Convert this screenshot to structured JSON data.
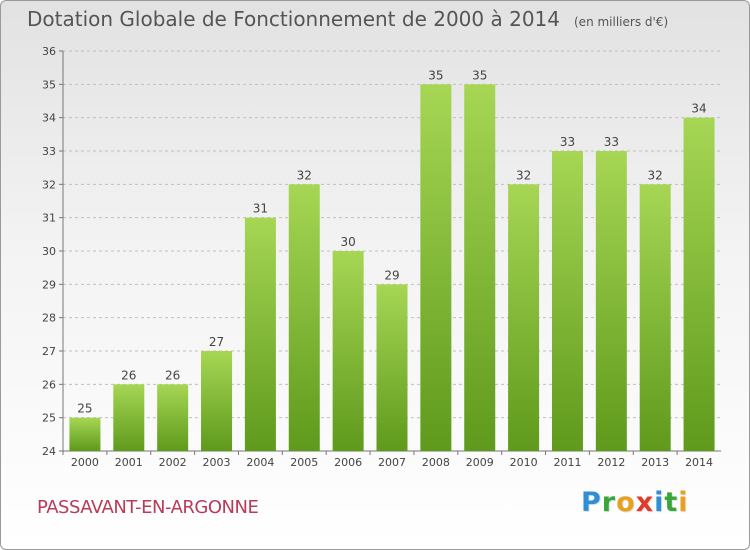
{
  "title": "Dotation Globale de Fonctionnement de 2000 à 2014",
  "subtitle": "(en milliers d'€)",
  "town": "PASSAVANT-EN-ARGONNE",
  "logo": {
    "letters": [
      "P",
      "r",
      "o",
      "x",
      "i",
      "t",
      "i"
    ],
    "colors": [
      "#2e8fd6",
      "#3aa63a",
      "#e8a020",
      "#e23a2a",
      "#2e8fd6",
      "#3aa63a",
      "#e8a020"
    ]
  },
  "colors": {
    "bar_light": "#a6d654",
    "bar_dark": "#5f9a1c",
    "grid": "#bfbfbf",
    "text": "#444444"
  },
  "chart_data": {
    "type": "bar",
    "categories": [
      "2000",
      "2001",
      "2002",
      "2003",
      "2004",
      "2005",
      "2006",
      "2007",
      "2008",
      "2009",
      "2010",
      "2011",
      "2012",
      "2013",
      "2014"
    ],
    "values": [
      25,
      26,
      26,
      27,
      31,
      32,
      30,
      29,
      35,
      35,
      32,
      33,
      33,
      32,
      34
    ],
    "data_labels": [
      "25",
      "26",
      "26",
      "27",
      "31",
      "32",
      "30",
      "29",
      "35",
      "35",
      "32",
      "33",
      "33",
      "32",
      "34"
    ],
    "ylim": [
      24,
      36
    ],
    "yticks": [
      "24",
      "25",
      "26",
      "27",
      "28",
      "29",
      "30",
      "31",
      "32",
      "33",
      "34",
      "35",
      "36"
    ],
    "grid": true,
    "xlabel": "",
    "ylabel": ""
  }
}
